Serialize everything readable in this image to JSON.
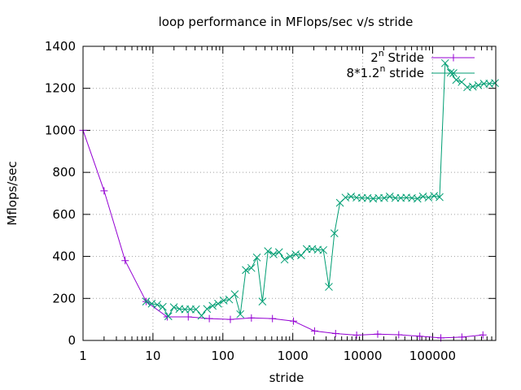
{
  "chart_data": {
    "type": "line",
    "title": "loop performance in MFlops/sec v/s stride",
    "xlabel": "stride",
    "ylabel": "Mflops/sec",
    "xscale": "log",
    "xlim": [
      1,
      800000
    ],
    "ylim": [
      0,
      1400
    ],
    "grid": true,
    "legend_position": "top-right",
    "x_tick_labels": [
      "1",
      "10",
      "100",
      "1000",
      "10000",
      "100000"
    ],
    "y_tick_labels": [
      "0",
      "200",
      "400",
      "600",
      "800",
      "1000",
      "1200",
      "1400"
    ],
    "x_ticks": [
      1,
      10,
      100,
      1000,
      10000,
      100000
    ],
    "y_ticks": [
      0,
      200,
      400,
      600,
      800,
      1000,
      1200,
      1400
    ],
    "series": [
      {
        "name": "2^n Stride",
        "legend_base": "2",
        "legend_sup": "n",
        "legend_tail": " Stride",
        "color": "#9400d3",
        "marker": "plus",
        "x": [
          1,
          2,
          4,
          8,
          16,
          32,
          64,
          128,
          256,
          512,
          1024,
          2048,
          4096,
          8192,
          16384,
          32768,
          65536,
          131072,
          262144,
          524288
        ],
        "y": [
          1000,
          712,
          380,
          185,
          112,
          112,
          104,
          100,
          107,
          104,
          92,
          45,
          33,
          25,
          30,
          27,
          20,
          12,
          16,
          26
        ]
      },
      {
        "name": "8*1.2^n stride",
        "legend_base": "8*1.2",
        "legend_sup": "n",
        "legend_tail": " stride",
        "color": "#009e73",
        "marker": "cross",
        "x": [
          8,
          9.6,
          11.5,
          13.8,
          16.6,
          19.9,
          23.9,
          28.7,
          34.4,
          41.3,
          49.5,
          59.4,
          71.3,
          85.6,
          102.7,
          123.2,
          147.9,
          177.5,
          213,
          255.5,
          306.6,
          368,
          441.6,
          529.9,
          635.9,
          763,
          915.6,
          1098.8,
          1318.5,
          1582.2,
          1898.7,
          2278.4,
          2734.1,
          3280.9,
          3937.1,
          4724.5,
          5669.4,
          6803.3,
          8163.9,
          9796.7,
          11756,
          14107,
          16929,
          20314,
          24377,
          29253,
          35103,
          42124,
          50549,
          60658,
          72790,
          87348,
          104818,
          125781,
          150938,
          181125,
          217350,
          260820,
          312984,
          375581,
          450697,
          540836,
          649003,
          778804
        ],
        "y": [
          185,
          175,
          170,
          160,
          115,
          158,
          150,
          148,
          148,
          148,
          118,
          150,
          165,
          175,
          190,
          195,
          220,
          125,
          335,
          345,
          395,
          185,
          425,
          410,
          420,
          385,
          400,
          410,
          405,
          435,
          435,
          432,
          430,
          255,
          510,
          655,
          680,
          685,
          680,
          678,
          678,
          675,
          678,
          678,
          685,
          678,
          678,
          680,
          678,
          675,
          685,
          680,
          688,
          682,
          1320,
          1275,
          1240,
          1230,
          1205,
          1208,
          1215,
          1222,
          1222,
          1225
        ]
      }
    ]
  }
}
